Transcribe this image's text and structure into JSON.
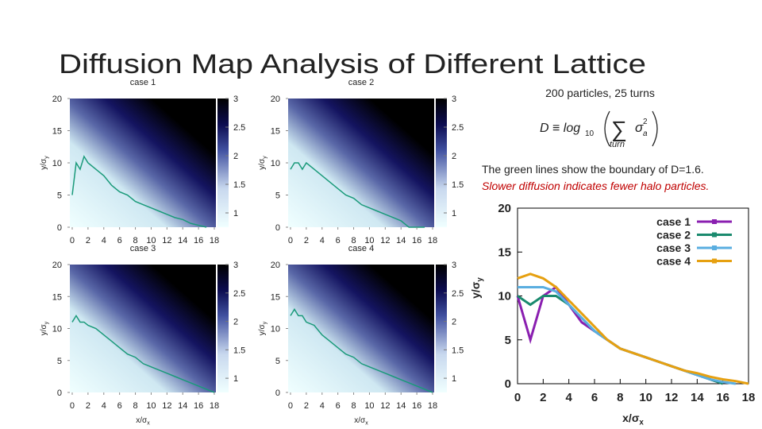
{
  "title": "Diffusion Map Analysis of Different Lattice",
  "info": "200 particles, 25 turns",
  "formula": {
    "lhs": "D ≡ log",
    "lhs_sub": "10",
    "sum": "∑",
    "sum_index": "turn",
    "term": "σ",
    "term_sub": "a",
    "term_sup": "2"
  },
  "notes": [
    "The green lines show the boundary of D=1.6.",
    "Slower diffusion indicates fewer halo particles."
  ],
  "chart_data": [
    {
      "type": "heatmap",
      "title": "case 1",
      "y_label": "y/σ",
      "y_label_sub": "y",
      "xlim": [
        -0.3,
        18.2
      ],
      "xticks": [
        0,
        2,
        4,
        6,
        8,
        10,
        12,
        14,
        16,
        18
      ],
      "ylim": [
        0,
        20
      ],
      "yticks": [
        0,
        5,
        10,
        15,
        20
      ],
      "colorbar": {
        "lim": [
          0.75,
          3
        ],
        "ticks": [
          1,
          1.5,
          2,
          2.5,
          3
        ]
      },
      "boundary": {
        "color": "#1a9a7a",
        "x": [
          0,
          0.5,
          1,
          1.5,
          2,
          3,
          4,
          5,
          6,
          7,
          8,
          9,
          10,
          11,
          12,
          13,
          14,
          15,
          16,
          17
        ],
        "values": [
          5,
          10,
          9,
          11,
          10,
          9,
          8,
          6.5,
          5.5,
          5,
          4,
          3.5,
          3,
          2.5,
          2,
          1.5,
          1.2,
          0.6,
          0.3,
          0
        ]
      }
    },
    {
      "type": "heatmap",
      "title": "case 2",
      "y_label": "y/σ",
      "y_label_sub": "y",
      "xlim": [
        -0.3,
        18.2
      ],
      "xticks": [
        0,
        2,
        4,
        6,
        8,
        10,
        12,
        14,
        16,
        18
      ],
      "ylim": [
        0,
        20
      ],
      "yticks": [
        0,
        5,
        10,
        15,
        20
      ],
      "colorbar": {
        "lim": [
          0.75,
          3
        ],
        "ticks": [
          1,
          1.5,
          2,
          2.5,
          3
        ]
      },
      "boundary": {
        "color": "#1a9a7a",
        "x": [
          0,
          0.5,
          1,
          1.5,
          2,
          3,
          4,
          5,
          6,
          7,
          8,
          9,
          10,
          11,
          12,
          13,
          14,
          15,
          16,
          17
        ],
        "values": [
          9,
          10,
          10,
          9,
          10,
          9,
          8,
          7,
          6,
          5,
          4.5,
          3.5,
          3,
          2.5,
          2,
          1.5,
          1,
          0,
          0,
          0
        ]
      }
    },
    {
      "type": "heatmap",
      "title": "case 3",
      "x_label": "x/σ",
      "x_label_sub": "x",
      "y_label": "y/σ",
      "y_label_sub": "y",
      "xlim": [
        -0.3,
        18.2
      ],
      "xticks": [
        0,
        2,
        4,
        6,
        8,
        10,
        12,
        14,
        16,
        18
      ],
      "ylim": [
        0,
        20
      ],
      "yticks": [
        0,
        5,
        10,
        15,
        20
      ],
      "colorbar": {
        "lim": [
          0.75,
          3
        ],
        "ticks": [
          1,
          1.5,
          2,
          2.5,
          3
        ]
      },
      "boundary": {
        "color": "#1a9a7a",
        "x": [
          0,
          0.5,
          1,
          1.5,
          2,
          3,
          4,
          5,
          6,
          7,
          8,
          9,
          10,
          11,
          12,
          13,
          14,
          15,
          16,
          17,
          18
        ],
        "values": [
          11,
          12,
          11,
          11,
          10.5,
          10,
          9,
          8,
          7,
          6,
          5.5,
          4.5,
          4,
          3.5,
          3,
          2.5,
          2,
          1.5,
          1,
          0.5,
          0
        ]
      }
    },
    {
      "type": "heatmap",
      "title": "case 4",
      "x_label": "x/σ",
      "x_label_sub": "x",
      "y_label": "y/σ",
      "y_label_sub": "y",
      "xlim": [
        -0.3,
        18.2
      ],
      "xticks": [
        0,
        2,
        4,
        6,
        8,
        10,
        12,
        14,
        16,
        18
      ],
      "ylim": [
        0,
        20
      ],
      "yticks": [
        0,
        5,
        10,
        15,
        20
      ],
      "colorbar": {
        "lim": [
          0.75,
          3
        ],
        "ticks": [
          1,
          1.5,
          2,
          2.5,
          3
        ]
      },
      "boundary": {
        "color": "#1a9a7a",
        "x": [
          0,
          0.5,
          1,
          1.5,
          2,
          3,
          4,
          5,
          6,
          7,
          8,
          9,
          10,
          11,
          12,
          13,
          14,
          15,
          16,
          17,
          18
        ],
        "values": [
          12,
          13,
          12,
          12,
          11,
          10.5,
          9,
          8,
          7,
          6,
          5.5,
          4.5,
          4,
          3.5,
          3,
          2.5,
          2,
          1.5,
          1,
          0.5,
          0
        ]
      }
    },
    {
      "type": "line",
      "x_label": "x/σ",
      "x_label_sub": "x",
      "y_label": "y/σ",
      "y_label_sub": "y",
      "x": [
        0,
        1,
        2,
        3,
        4,
        5,
        6,
        7,
        8,
        9,
        10,
        11,
        12,
        13,
        14,
        15,
        16,
        17,
        18
      ],
      "xlim": [
        0,
        18
      ],
      "xticks": [
        0,
        2,
        4,
        6,
        8,
        10,
        12,
        14,
        16,
        18
      ],
      "ylim": [
        0,
        20
      ],
      "yticks": [
        0,
        5,
        10,
        15,
        20
      ],
      "legend": "upper right",
      "series": [
        {
          "name": "case 1",
          "color": "#8a1fb0",
          "values": [
            10,
            5,
            10,
            11,
            9,
            7,
            6,
            5,
            4,
            3.5,
            3,
            2.5,
            2,
            1.5,
            1,
            0.5,
            0,
            null,
            null
          ]
        },
        {
          "name": "case 2",
          "color": "#1a8a6e",
          "values": [
            10,
            9,
            10,
            10,
            9,
            7.5,
            6,
            5,
            4,
            3.5,
            3,
            2.5,
            2,
            1.5,
            1,
            0.5,
            0,
            null,
            null
          ]
        },
        {
          "name": "case 3",
          "color": "#5aaee0",
          "values": [
            11,
            11,
            11,
            10.5,
            9,
            7.5,
            6,
            5,
            4,
            3.5,
            3,
            2.5,
            2,
            1.5,
            1,
            0.5,
            0.2,
            0,
            null
          ]
        },
        {
          "name": "case 4",
          "color": "#e6a010",
          "values": [
            12,
            12.5,
            12,
            11,
            9.5,
            8,
            6.5,
            5,
            4,
            3.5,
            3,
            2.5,
            2,
            1.5,
            1.2,
            0.8,
            0.5,
            0.3,
            0
          ]
        }
      ]
    }
  ]
}
